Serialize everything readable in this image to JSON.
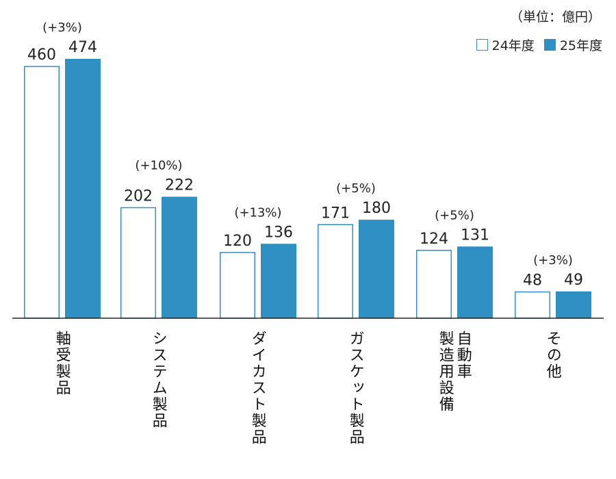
{
  "unit_label": "（単位：億円）",
  "legend": {
    "series_a": "24年度",
    "series_b": "25年度"
  },
  "colors": {
    "series_a_border": "#2e8fc3",
    "series_b_fill": "#2e8fc3",
    "axis": "#222222"
  },
  "chart_data": {
    "type": "bar",
    "categories": [
      "軸受製品",
      "システム製品",
      "ダイカスト製品",
      "ガスケット製品",
      "自動車製造用設備",
      "その他"
    ],
    "category_label_lines": [
      [
        "軸受製品"
      ],
      [
        "システム製品"
      ],
      [
        "ダイカスト製品"
      ],
      [
        "ガスケット製品"
      ],
      [
        "自動車",
        "製造用設備"
      ],
      [
        "その他"
      ]
    ],
    "series": [
      {
        "name": "24年度",
        "values": [
          460,
          202,
          120,
          171,
          124,
          48
        ]
      },
      {
        "name": "25年度",
        "values": [
          474,
          222,
          136,
          180,
          131,
          49
        ]
      }
    ],
    "growth_labels": [
      "(+3%)",
      "(+10%)",
      "(+13%)",
      "(+5%)",
      "(+5%)",
      "(+3%)"
    ],
    "ylim": [
      0,
      474
    ],
    "grid": false,
    "legend_position": "top-right"
  }
}
